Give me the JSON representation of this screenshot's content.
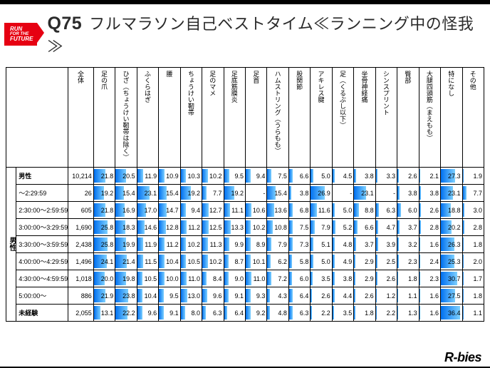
{
  "badge": {
    "l1": "RUN",
    "l2": "FOR THE",
    "l3": "FUTURE"
  },
  "title": {
    "qnum": "Q75",
    "text": "フルマラソン自己ベストタイム≪ランニング中の怪我≫"
  },
  "columns": {
    "corner": "全体",
    "heads": [
      "足の爪",
      "ひざ（ちょうけい靭帯は除く）",
      "ふくらはぎ",
      "腰",
      "ちょうけい靭帯",
      "足のマメ",
      "足底筋膜炎",
      "足首",
      "ハムストリング（うらもも）",
      "股関節",
      "アキレス腱",
      "足（くるぶし以下）",
      "坐骨神経痛",
      "シンスプリント",
      "臀部",
      "大腿四頭筋（まえもも）",
      "特になし",
      "その他"
    ]
  },
  "side_label": "男性",
  "rows": [
    {
      "label": "男性",
      "bold": true,
      "total": "10,214",
      "vals": [
        21.8,
        20.5,
        11.9,
        10.9,
        10.3,
        10.2,
        9.5,
        9.4,
        7.5,
        6.6,
        5.0,
        4.5,
        3.8,
        3.3,
        2.6,
        2.1,
        27.3,
        1.9
      ]
    },
    {
      "label": "～2:29:59",
      "bold": false,
      "total": "26",
      "vals": [
        19.2,
        15.4,
        23.1,
        15.4,
        19.2,
        7.7,
        19.2,
        null,
        15.4,
        3.8,
        26.9,
        null,
        23.1,
        null,
        3.8,
        3.8,
        23.1,
        7.7
      ]
    },
    {
      "label": "2:30:00～2:59:59",
      "bold": false,
      "total": "605",
      "vals": [
        21.8,
        16.9,
        17.0,
        14.7,
        9.4,
        12.7,
        11.1,
        10.6,
        13.6,
        6.8,
        11.6,
        5.0,
        8.8,
        6.3,
        6.0,
        2.6,
        18.8,
        3.0
      ]
    },
    {
      "label": "3:00:00～3:29:59",
      "bold": false,
      "total": "1,690",
      "vals": [
        25.8,
        18.3,
        14.6,
        12.8,
        11.2,
        12.5,
        13.3,
        10.2,
        10.8,
        7.5,
        7.9,
        5.2,
        6.6,
        4.7,
        3.7,
        2.8,
        20.2,
        2.8
      ]
    },
    {
      "label": "3:30:00～3:59:59",
      "bold": false,
      "total": "2,438",
      "vals": [
        25.8,
        19.9,
        11.9,
        11.2,
        10.2,
        11.3,
        9.9,
        8.9,
        7.9,
        7.3,
        5.1,
        4.8,
        3.7,
        3.9,
        3.2,
        1.6,
        26.3,
        1.8
      ]
    },
    {
      "label": "4:00:00～4:29:59",
      "bold": false,
      "total": "1,496",
      "vals": [
        24.1,
        21.4,
        11.5,
        10.4,
        10.5,
        10.2,
        8.7,
        10.1,
        6.2,
        5.8,
        5.0,
        4.9,
        2.9,
        2.5,
        2.3,
        2.4,
        25.3,
        2.0
      ]
    },
    {
      "label": "4:30:00～4:59:59",
      "bold": false,
      "total": "1,018",
      "vals": [
        20.0,
        19.8,
        10.5,
        10.0,
        11.0,
        8.4,
        9.0,
        11.0,
        7.2,
        6.0,
        3.5,
        3.8,
        2.9,
        2.6,
        1.8,
        2.3,
        30.7,
        1.7
      ]
    },
    {
      "label": "5:00:00～",
      "bold": false,
      "total": "886",
      "vals": [
        21.9,
        23.8,
        10.4,
        9.5,
        13.0,
        9.6,
        9.1,
        9.3,
        4.3,
        6.4,
        2.6,
        4.4,
        2.6,
        1.2,
        1.1,
        1.6,
        27.5,
        1.8
      ]
    },
    {
      "label": "未経験",
      "bold": true,
      "total": "2,055",
      "vals": [
        13.1,
        22.2,
        9.6,
        9.1,
        8.0,
        6.3,
        6.4,
        9.2,
        4.8,
        6.3,
        2.2,
        3.5,
        1.8,
        2.2,
        1.3,
        1.6,
        36.4,
        1.1
      ]
    }
  ],
  "bar_scale_max": 40,
  "footer_brand": "R-bies"
}
